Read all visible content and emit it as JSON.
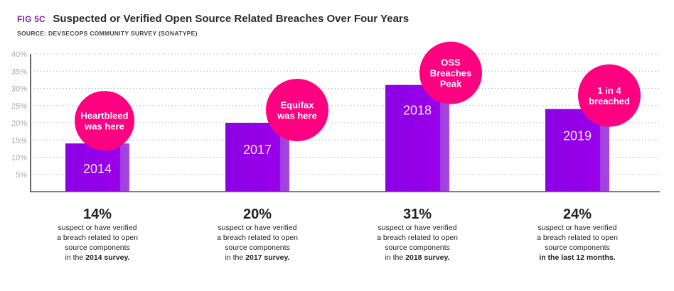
{
  "header": {
    "fig_label": "FIG 5C",
    "title": "Suspected or Verified Open Source Related Breaches Over Four Years",
    "source": "SOURCE: DEVSECOPS COMMUNITY SURVEY (SONATYPE)"
  },
  "colors": {
    "bar": "#8c00e6",
    "bar_edge": "#a845e0",
    "bubble": "#ff0080",
    "fig_label": "#8a1fb0"
  },
  "chart_data": {
    "type": "bar",
    "title": "Suspected or Verified Open Source Related Breaches Over Four Years",
    "xlabel": "",
    "ylabel": "",
    "categories": [
      "2014",
      "2017",
      "2018",
      "2019"
    ],
    "values": [
      14,
      20,
      31,
      24
    ],
    "unit": "%",
    "ylim": [
      0,
      40
    ],
    "yticks": [
      "5%",
      "10%",
      "15%",
      "20%",
      "25%",
      "30%",
      "35%",
      "40%"
    ],
    "ytick_values": [
      5,
      10,
      15,
      20,
      25,
      30,
      35,
      40
    ],
    "grid": "dotted horizontal",
    "annotations": [
      {
        "category": "2014",
        "lines": [
          "Heartbleed",
          "was here"
        ]
      },
      {
        "category": "2017",
        "lines": [
          "Equifax",
          "was here"
        ]
      },
      {
        "category": "2018",
        "lines": [
          "OSS",
          "Breaches",
          "Peak"
        ]
      },
      {
        "category": "2019",
        "lines": [
          "1 in 4",
          "breached"
        ]
      }
    ]
  },
  "stats": [
    {
      "pct": "14%",
      "line1": "suspect or have verified",
      "line2": "a breach related to open",
      "line3": "source components",
      "prefix": "in the ",
      "bold": "2014 survey."
    },
    {
      "pct": "20%",
      "line1": "suspect or have verified",
      "line2": "a breach related to open",
      "line3": "source components",
      "prefix": "in the ",
      "bold": "2017 survey."
    },
    {
      "pct": "31%",
      "line1": "suspect or have verified",
      "line2": "a breach related to open",
      "line3": "source components",
      "prefix": "in the ",
      "bold": "2018 survey."
    },
    {
      "pct": "24%",
      "line1": "suspect or have verified",
      "line2": "a breach related to open",
      "line3": "source components",
      "prefix": "",
      "bold": "in the last 12 months."
    }
  ]
}
